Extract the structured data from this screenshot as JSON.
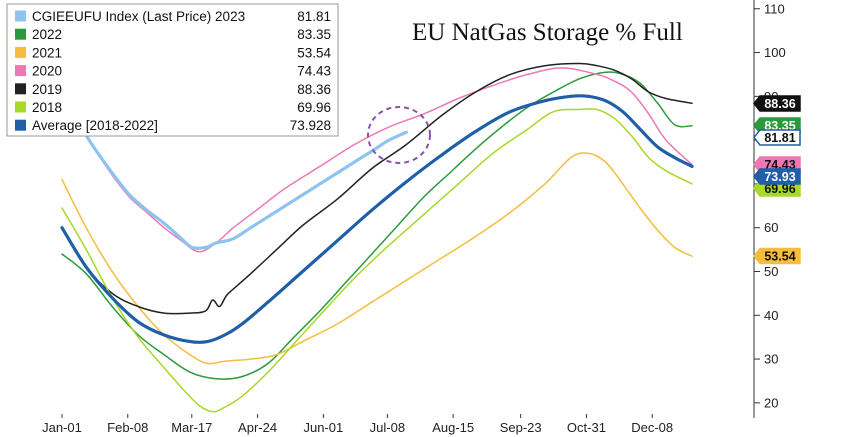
{
  "chart_data": {
    "type": "line",
    "title": "EU NatGas Storage % Full",
    "xlabel": "",
    "ylabel": "",
    "ylim": [
      17,
      112
    ],
    "yticks": [
      20,
      30,
      40,
      50,
      60,
      70,
      80,
      90,
      100,
      110
    ],
    "xticks": [
      "Jan-01",
      "Feb-08",
      "Mar-17",
      "Apr-24",
      "Jun-01",
      "Jul-08",
      "Aug-15",
      "Sep-23",
      "Oct-31",
      "Dec-08"
    ],
    "xtick_days": [
      1,
      39,
      76,
      114,
      152,
      189,
      227,
      266,
      304,
      342
    ],
    "xlim": [
      1,
      365
    ],
    "grid": false,
    "legend_position": "top-left",
    "series": [
      {
        "name": "CGIEEUFU Index (Last Price) 2023",
        "last": "81.81",
        "color": "#8ec3f0",
        "width": 3.2,
        "badge": "81.81",
        "badge_bg": "#ffffff",
        "badge_border": "#1f5fa8",
        "badge_fg": "#111111",
        "x": [
          12,
          20,
          30,
          40,
          50,
          60,
          70,
          76,
          84,
          90,
          100,
          110,
          120,
          130,
          140,
          150,
          160,
          170,
          180,
          190,
          200
        ],
        "y": [
          83,
          78,
          72.5,
          67.5,
          64,
          61,
          57.5,
          55.5,
          55.5,
          56.5,
          57.5,
          60,
          62.5,
          65,
          67.5,
          70,
          72.5,
          75,
          77.5,
          80,
          81.8
        ]
      },
      {
        "name": "2022",
        "last": "83.35",
        "color": "#2c9a3c",
        "width": 1.5,
        "badge": "83.35",
        "badge_bg": "#2c9a3c",
        "badge_border": "#2c9a3c",
        "badge_fg": "#ffffff",
        "x": [
          1,
          15,
          30,
          45,
          60,
          75,
          90,
          105,
          120,
          135,
          150,
          165,
          180,
          195,
          210,
          225,
          240,
          255,
          270,
          285,
          300,
          315,
          325,
          335,
          345,
          355,
          365
        ],
        "y": [
          54,
          49.5,
          42,
          35.5,
          31,
          27,
          25.5,
          26,
          29,
          35,
          41,
          47.5,
          54,
          60.5,
          67,
          72.5,
          78,
          83,
          87.5,
          91,
          94,
          95.5,
          95,
          93,
          88.5,
          83.5,
          83.3
        ]
      },
      {
        "name": "2021",
        "last": "53.54",
        "color": "#f5bd3d",
        "width": 1.5,
        "badge": "53.54",
        "badge_bg": "#f5bd3d",
        "badge_border": "#f5bd3d",
        "badge_fg": "#111111",
        "x": [
          1,
          15,
          30,
          45,
          60,
          75,
          85,
          95,
          110,
          125,
          140,
          160,
          180,
          200,
          220,
          240,
          260,
          280,
          295,
          305,
          315,
          325,
          335,
          345,
          355,
          365
        ],
        "y": [
          71,
          60,
          50,
          42,
          35.5,
          31,
          29,
          29.5,
          30,
          31,
          34,
          38,
          43,
          48,
          53,
          58,
          63.5,
          70,
          76,
          77,
          75,
          70,
          64.5,
          59.5,
          55.5,
          53.5
        ]
      },
      {
        "name": "2020",
        "last": "74.43",
        "color": "#ee77b4",
        "width": 1.5,
        "badge": "74.43",
        "badge_bg": "#ee77b4",
        "badge_border": "#ee77b4",
        "badge_fg": "#111111",
        "x": [
          12,
          20,
          30,
          40,
          50,
          60,
          70,
          80,
          90,
          100,
          115,
          130,
          150,
          170,
          190,
          210,
          230,
          250,
          270,
          290,
          310,
          320,
          330,
          340,
          350,
          365
        ],
        "y": [
          84,
          78,
          72,
          67,
          63.5,
          60,
          57,
          54.5,
          56.5,
          60,
          64.5,
          69,
          74,
          79,
          83,
          86,
          89.5,
          92.5,
          95,
          96.5,
          95,
          93.5,
          91,
          86,
          80,
          74.4
        ]
      },
      {
        "name": "2019",
        "last": "88.36",
        "color": "#222222",
        "width": 1.5,
        "badge": "88.36",
        "badge_bg": "#111111",
        "badge_border": "#111111",
        "badge_fg": "#ffffff",
        "x": [
          1,
          15,
          30,
          45,
          60,
          75,
          84,
          88,
          92,
          96,
          100,
          110,
          125,
          140,
          160,
          180,
          200,
          220,
          240,
          260,
          280,
          300,
          310,
          320,
          330,
          340,
          350,
          365
        ],
        "y": [
          60,
          51,
          45,
          42,
          40.5,
          40.5,
          41,
          43.5,
          42,
          44.5,
          46,
          49.5,
          55,
          60.5,
          66.5,
          73.5,
          79,
          85.5,
          91,
          95,
          97,
          97.5,
          97,
          96,
          94,
          91,
          89.5,
          88.4
        ]
      },
      {
        "name": "2018",
        "last": "69.96",
        "color": "#a8d828",
        "width": 1.5,
        "badge": "69.96",
        "badge_bg": "#a8d828",
        "badge_border": "#a8d828",
        "badge_fg": "#111111",
        "x": [
          1,
          15,
          30,
          45,
          60,
          70,
          80,
          88,
          95,
          105,
          120,
          135,
          150,
          170,
          190,
          210,
          230,
          250,
          270,
          285,
          300,
          310,
          320,
          330,
          340,
          350,
          365
        ],
        "y": [
          64.5,
          55,
          44,
          35,
          28,
          23.5,
          19.5,
          18,
          19,
          21.5,
          27,
          33.5,
          40,
          48.5,
          56,
          63,
          70,
          77,
          82.5,
          86.5,
          87,
          87,
          85,
          81,
          76,
          73,
          70
        ]
      },
      {
        "name": "Average  [2018-2022]",
        "last": "73.928",
        "color": "#1f5fa8",
        "width": 3.2,
        "badge": "73.93",
        "badge_bg": "#1f5fa8",
        "badge_border": "#1f5fa8",
        "badge_fg": "#ffffff",
        "x": [
          1,
          15,
          30,
          45,
          60,
          75,
          85,
          95,
          105,
          120,
          140,
          160,
          180,
          200,
          220,
          240,
          260,
          280,
          295,
          305,
          315,
          325,
          335,
          345,
          355,
          365
        ],
        "y": [
          60,
          51,
          44,
          38.5,
          35.5,
          34,
          34,
          35.5,
          38,
          43,
          50,
          57,
          64,
          70.5,
          76.5,
          82,
          86.5,
          89,
          90,
          90,
          89,
          86.5,
          82.5,
          78.5,
          76,
          74
        ]
      }
    ]
  }
}
